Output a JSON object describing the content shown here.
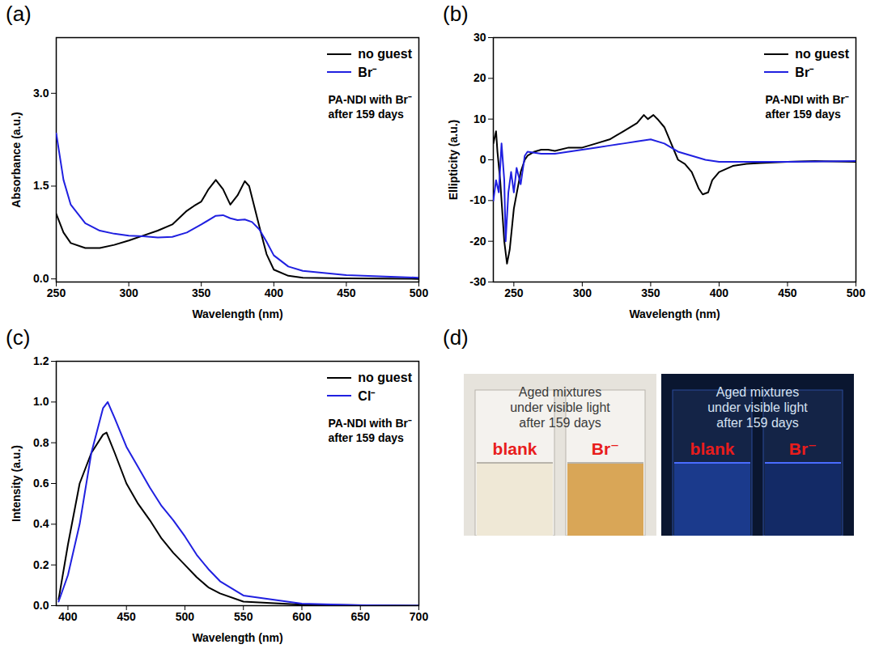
{
  "chart_data": [
    {
      "type": "line",
      "title": "(a)",
      "xlabel": "Wavelength (nm)",
      "ylabel": "Absorbance (a.u.)",
      "annotations": [
        "PA-NDI with Br⁻",
        "after 159 days"
      ],
      "legend": "top-right",
      "xlim": [
        250,
        500
      ],
      "xticks": [
        250,
        300,
        350,
        400,
        450,
        500
      ],
      "ylim": [
        -0.05,
        3.9
      ],
      "yticks": [
        {
          "value": 0,
          "label": "0.0"
        },
        {
          "value": 1.5,
          "label": "1.5"
        },
        {
          "value": 3,
          "label": "3.0"
        }
      ],
      "series": [
        {
          "name": "no guest",
          "color": "#000000",
          "x": [
            250,
            255,
            260,
            270,
            280,
            290,
            300,
            310,
            320,
            330,
            340,
            345,
            350,
            355,
            360,
            365,
            370,
            375,
            380,
            383,
            390,
            395,
            400,
            410,
            420,
            450,
            500
          ],
          "values": [
            1.05,
            0.75,
            0.58,
            0.5,
            0.5,
            0.55,
            0.62,
            0.7,
            0.78,
            0.88,
            1.1,
            1.18,
            1.25,
            1.45,
            1.6,
            1.45,
            1.2,
            1.35,
            1.58,
            1.5,
            0.85,
            0.4,
            0.15,
            0.05,
            0.02,
            0.01,
            0.0
          ]
        },
        {
          "name": "Br⁻",
          "color": "#2020e0",
          "x": [
            250,
            255,
            260,
            270,
            280,
            290,
            300,
            310,
            320,
            330,
            340,
            350,
            360,
            365,
            370,
            375,
            380,
            385,
            390,
            395,
            400,
            410,
            420,
            450,
            500
          ],
          "values": [
            2.35,
            1.6,
            1.2,
            0.9,
            0.78,
            0.73,
            0.7,
            0.69,
            0.67,
            0.68,
            0.75,
            0.88,
            1.02,
            1.03,
            0.98,
            0.95,
            0.96,
            0.92,
            0.8,
            0.6,
            0.38,
            0.2,
            0.13,
            0.06,
            0.02
          ]
        }
      ]
    },
    {
      "type": "line",
      "title": "(b)",
      "xlabel": "Wavelength (nm)",
      "ylabel": "Ellipticity (a.u.)",
      "annotations": [
        "PA-NDI with Br⁻",
        "after 159 days"
      ],
      "legend": "top-right",
      "xlim": [
        235,
        500
      ],
      "xticks": [
        250,
        300,
        350,
        400,
        450,
        500
      ],
      "ylim": [
        -30,
        30
      ],
      "yticks": [
        -30,
        -20,
        -10,
        0,
        10,
        20,
        30
      ],
      "series": [
        {
          "name": "no guest",
          "color": "#000000",
          "x": [
            235,
            237,
            238,
            240,
            243,
            245,
            247,
            250,
            255,
            258,
            260,
            265,
            270,
            275,
            280,
            290,
            300,
            310,
            320,
            330,
            340,
            345,
            348,
            352,
            355,
            360,
            365,
            370,
            375,
            380,
            385,
            388,
            392,
            395,
            400,
            410,
            420,
            430,
            450,
            470,
            500
          ],
          "values": [
            4,
            7,
            2,
            -5,
            -20,
            -25.5,
            -22,
            -12,
            -3,
            0,
            1,
            2,
            2.5,
            2.5,
            2.2,
            3,
            3,
            4,
            5,
            7,
            9,
            11,
            10,
            11,
            10,
            8,
            4,
            0,
            -1,
            -3,
            -7,
            -8.5,
            -8,
            -5,
            -3,
            -1.5,
            -1,
            -0.8,
            -0.5,
            -0.3,
            -0.5
          ]
        },
        {
          "name": "Br⁻",
          "color": "#2020e0",
          "x": [
            235,
            237,
            239,
            241,
            243,
            244,
            246,
            248,
            250,
            252,
            255,
            258,
            260,
            270,
            280,
            290,
            300,
            310,
            320,
            330,
            340,
            350,
            360,
            370,
            380,
            390,
            400,
            420,
            450,
            500
          ],
          "values": [
            -10,
            -5,
            -8,
            4,
            -5,
            -20,
            -8,
            -3,
            -8,
            -2,
            -6,
            1,
            2,
            1.5,
            1.5,
            2,
            2.5,
            3,
            3.5,
            4,
            4.5,
            5,
            4,
            2,
            1,
            0,
            -0.5,
            -0.5,
            -0.5,
            -0.3
          ]
        }
      ]
    },
    {
      "type": "line",
      "title": "(c)",
      "xlabel": "Wavelength (nm)",
      "ylabel": "Intensity (a.u.)",
      "annotations": [
        "PA-NDI with Br⁻",
        "after 159 days"
      ],
      "legend": "top-right",
      "xlim": [
        390,
        700
      ],
      "xticks": [
        400,
        450,
        500,
        550,
        600,
        650,
        700
      ],
      "ylim": [
        0,
        1.2
      ],
      "yticks": [
        {
          "value": 0,
          "label": "0.0"
        },
        {
          "value": 0.2,
          "label": "0.2"
        },
        {
          "value": 0.4,
          "label": "0.4"
        },
        {
          "value": 0.6,
          "label": "0.6"
        },
        {
          "value": 0.8,
          "label": "0.8"
        },
        {
          "value": 1,
          "label": "1.0"
        },
        {
          "value": 1.2,
          "label": "1.2"
        }
      ],
      "series": [
        {
          "name": "no guest",
          "color": "#000000",
          "x": [
            392,
            400,
            410,
            420,
            430,
            433,
            440,
            450,
            460,
            470,
            480,
            490,
            500,
            510,
            520,
            530,
            550,
            600,
            700
          ],
          "values": [
            0.03,
            0.3,
            0.6,
            0.75,
            0.84,
            0.85,
            0.75,
            0.6,
            0.5,
            0.42,
            0.33,
            0.26,
            0.2,
            0.14,
            0.09,
            0.06,
            0.02,
            0.005,
            0
          ]
        },
        {
          "name": "Cl⁻",
          "color": "#2020e0",
          "x": [
            392,
            400,
            410,
            420,
            430,
            434,
            440,
            450,
            460,
            470,
            480,
            490,
            500,
            510,
            520,
            530,
            550,
            600,
            650,
            700
          ],
          "values": [
            0.02,
            0.15,
            0.4,
            0.75,
            0.97,
            1.0,
            0.92,
            0.78,
            0.68,
            0.58,
            0.49,
            0.42,
            0.34,
            0.25,
            0.18,
            0.12,
            0.05,
            0.01,
            0.002,
            0
          ]
        }
      ]
    }
  ],
  "photo_panel": {
    "title": "(d)",
    "images": [
      {
        "caption": [
          "Aged mixtures",
          "under visible light",
          "after 159 days"
        ],
        "labels": [
          "blank",
          "Br⁻"
        ]
      },
      {
        "caption": [
          "Aged mixtures",
          "under visible light",
          "after 159 days"
        ],
        "labels": [
          "blank",
          "Br⁻"
        ]
      }
    ]
  }
}
